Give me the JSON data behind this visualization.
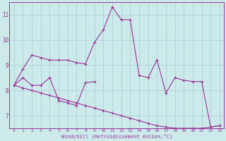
{
  "xlabel": "Windchill (Refroidissement éolien,°C)",
  "bg_color": "#cceaea",
  "grid_color": "#aacccc",
  "line_color": "#993399",
  "x_hours": [
    0,
    1,
    2,
    3,
    4,
    5,
    6,
    7,
    8,
    9,
    10,
    11,
    12,
    13,
    14,
    15,
    16,
    17,
    18,
    19,
    20,
    21,
    22,
    23
  ],
  "series1": [
    8.2,
    8.85,
    9.4,
    9.3,
    9.2,
    9.2,
    9.2,
    9.1,
    9.05,
    9.9,
    10.4,
    11.3,
    10.8,
    10.8,
    8.6,
    8.5,
    9.2,
    7.9,
    8.5,
    8.4,
    8.35,
    8.35,
    6.55,
    6.6
  ],
  "series2": [
    8.2,
    8.5,
    8.2,
    8.2,
    8.5,
    7.6,
    7.5,
    7.4,
    8.3,
    8.35,
    null,
    null,
    null,
    null,
    null,
    null,
    null,
    null,
    null,
    null,
    null,
    null,
    null,
    null
  ],
  "series3": [
    8.2,
    8.1,
    8.0,
    7.9,
    7.8,
    7.7,
    7.6,
    7.5,
    7.4,
    7.3,
    7.2,
    7.1,
    7.0,
    6.9,
    6.8,
    6.7,
    6.6,
    6.55,
    6.5,
    6.5,
    6.5,
    6.5,
    6.55,
    6.6
  ],
  "ylim_min": 6.5,
  "ylim_max": 11.5,
  "yticks": [
    7,
    8,
    9,
    10,
    11
  ],
  "xticks": [
    0,
    1,
    2,
    3,
    4,
    5,
    6,
    7,
    8,
    9,
    10,
    11,
    12,
    13,
    14,
    15,
    16,
    17,
    18,
    19,
    20,
    21,
    22,
    23
  ]
}
